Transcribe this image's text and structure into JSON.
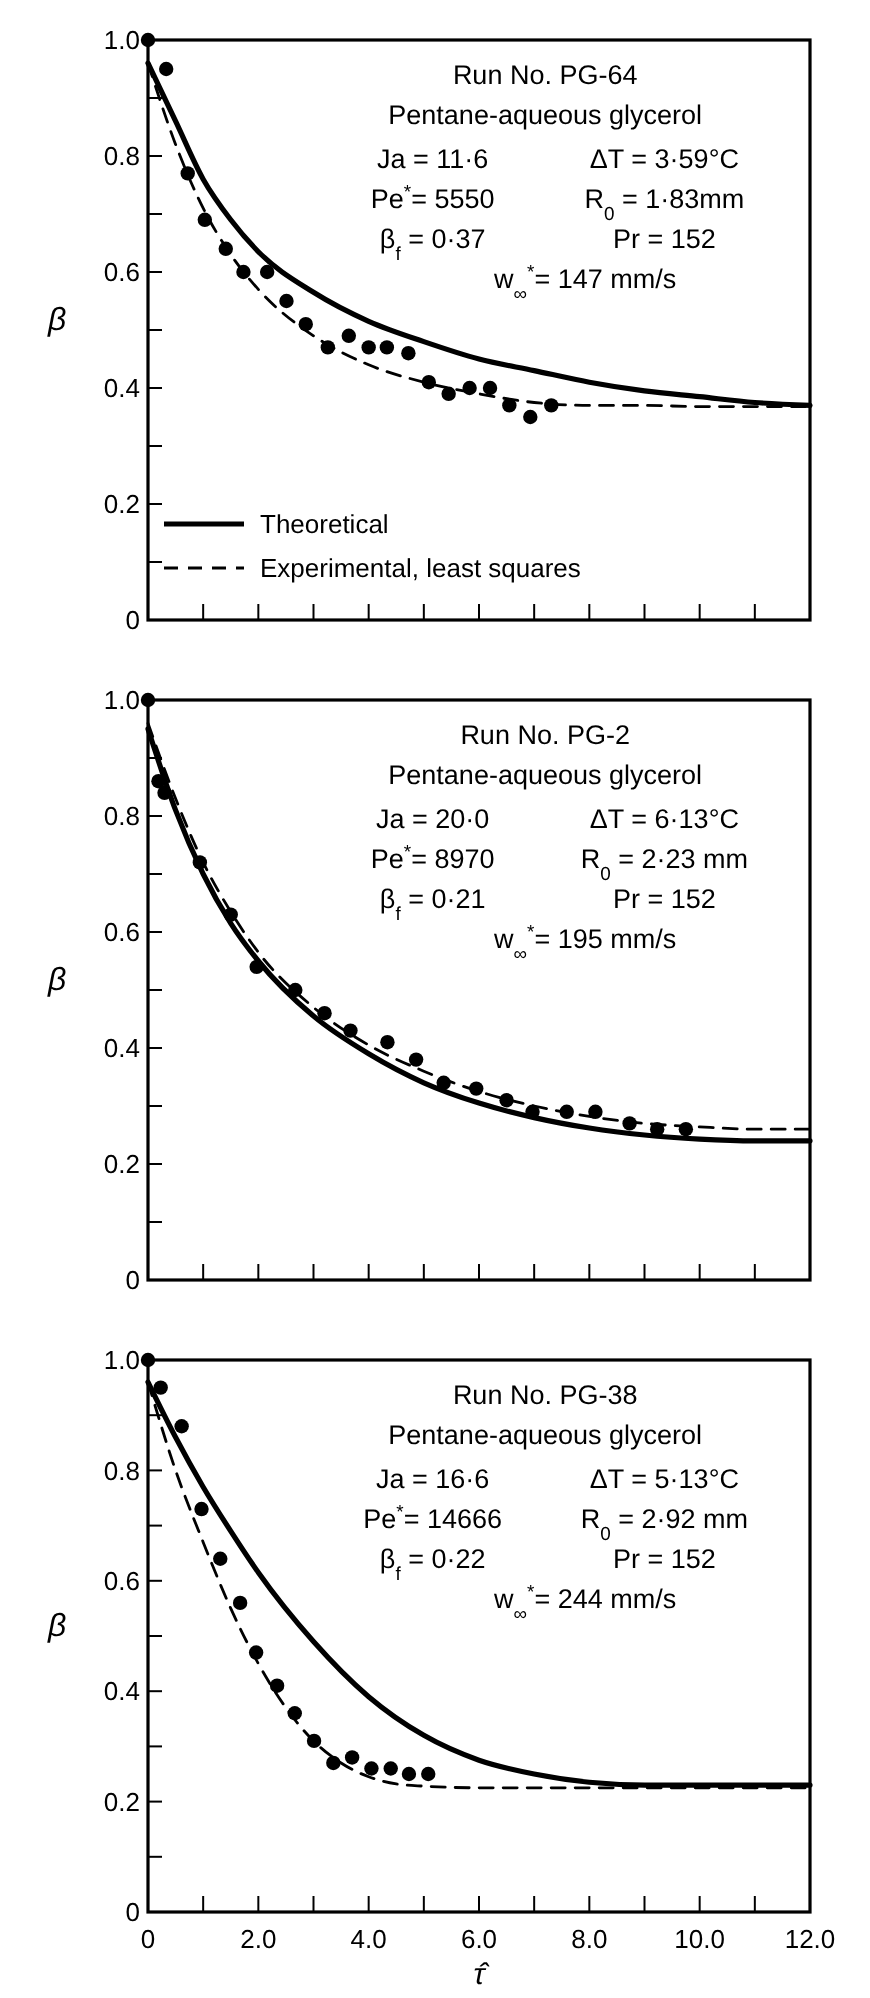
{
  "chart_data": [
    {
      "type": "line",
      "ylabel": "β",
      "xlim": [
        0,
        12
      ],
      "ylim": [
        0,
        1
      ],
      "xticks": [
        0,
        1,
        2,
        3,
        4,
        5,
        6,
        7,
        8,
        9,
        10,
        11,
        12
      ],
      "yticks": [
        0,
        {
          "value": 0.1,
          "label": null
        },
        0.2,
        {
          "value": 0.3,
          "label": null
        },
        0.4,
        {
          "value": 0.5,
          "label": null
        },
        0.6,
        {
          "value": 0.7,
          "label": null
        },
        0.8,
        {
          "value": 0.9,
          "label": null
        },
        {
          "value": 1,
          "label": "1.0"
        }
      ],
      "tick_labels": "y",
      "legend": "bottom left",
      "annotations": [
        "Run No. PG-64",
        "Pentane-aqueous glycerol",
        "Ja = 11·6",
        "ΔT = 3·59°C",
        "Pe$^{*}$= 5550",
        "R$_{0}$ = 1·83mm",
        "β$_{f}$ = 0·37",
        "Pr = 152",
        "w$_{∞}$$^{*}$= 147 mm/s"
      ],
      "series": [
        {
          "name": "Theoretical",
          "color": "#000000",
          "line_style": "solid",
          "marker": "none",
          "x": [
            0,
            0.5,
            1,
            1.5,
            2,
            3,
            4,
            5,
            6,
            7,
            8,
            9,
            10,
            11,
            12
          ],
          "values": [
            0.96,
            0.86,
            0.76,
            0.69,
            0.635,
            0.565,
            0.515,
            0.48,
            0.45,
            0.43,
            0.41,
            0.395,
            0.385,
            0.375,
            0.37
          ]
        },
        {
          "name": "Experimental, least squares",
          "color": "#000000",
          "line_style": "dashed",
          "marker": "none",
          "x": [
            0,
            0.5,
            1,
            1.5,
            2,
            3,
            4,
            5,
            6,
            7,
            8,
            9,
            10,
            12
          ],
          "values": [
            0.96,
            0.82,
            0.71,
            0.63,
            0.57,
            0.49,
            0.44,
            0.41,
            0.39,
            0.375,
            0.37,
            0.37,
            0.368,
            0.368
          ]
        },
        {
          "type": "scatter",
          "color": "#000000",
          "marker": "circle",
          "x": [
            0,
            0.33,
            0.72,
            1.03,
            1.41,
            1.73,
            2.16,
            2.51,
            2.86,
            3.26,
            3.64,
            4.0,
            4.33,
            4.72,
            5.09,
            5.45,
            5.83,
            6.2,
            6.55,
            6.93,
            7.31
          ],
          "values": [
            1.0,
            0.95,
            0.77,
            0.69,
            0.64,
            0.6,
            0.6,
            0.55,
            0.51,
            0.47,
            0.49,
            0.47,
            0.47,
            0.46,
            0.41,
            0.39,
            0.4,
            0.4,
            0.37,
            0.35,
            0.37
          ]
        }
      ]
    },
    {
      "type": "line",
      "ylabel": "β",
      "xlim": [
        0,
        12
      ],
      "ylim": [
        0,
        1
      ],
      "xticks": [
        0,
        1,
        2,
        3,
        4,
        5,
        6,
        7,
        8,
        9,
        10,
        11,
        12
      ],
      "yticks": [
        0,
        {
          "value": 0.1,
          "label": null
        },
        0.2,
        {
          "value": 0.3,
          "label": null
        },
        0.4,
        {
          "value": 0.5,
          "label": null
        },
        0.6,
        {
          "value": 0.7,
          "label": null
        },
        0.8,
        {
          "value": 0.9,
          "label": null
        },
        {
          "value": 1,
          "label": "1.0"
        }
      ],
      "tick_labels": "y",
      "annotations": [
        "Run No. PG-2",
        "Pentane-aqueous glycerol",
        "Ja = 20·0",
        "ΔT = 6·13°C",
        "Pe$^{*}$= 8970",
        "R$_{0}$ = 2·23 mm",
        "β$_{f}$ = 0·21",
        "Pr = 152",
        "w$_{∞}$$^{*}$= 195 mm/s"
      ],
      "series": [
        {
          "color": "#000000",
          "line_style": "solid",
          "marker": "none",
          "x": [
            0,
            0.5,
            1,
            1.5,
            2,
            3,
            4,
            5,
            6,
            7,
            8,
            9,
            10,
            11,
            12
          ],
          "values": [
            0.95,
            0.81,
            0.7,
            0.615,
            0.55,
            0.455,
            0.39,
            0.34,
            0.305,
            0.28,
            0.262,
            0.25,
            0.243,
            0.24,
            0.24
          ]
        },
        {
          "color": "#000000",
          "line_style": "dashed",
          "marker": "none",
          "x": [
            0,
            0.5,
            1,
            1.5,
            2,
            3,
            4,
            5,
            6,
            7,
            8,
            9,
            10,
            11,
            12
          ],
          "values": [
            0.96,
            0.83,
            0.72,
            0.635,
            0.565,
            0.47,
            0.405,
            0.36,
            0.325,
            0.3,
            0.282,
            0.27,
            0.264,
            0.26,
            0.26
          ]
        },
        {
          "type": "scatter",
          "color": "#000000",
          "marker": "circle",
          "x": [
            0,
            0.19,
            0.3,
            0.94,
            1.5,
            1.97,
            2.67,
            3.2,
            3.67,
            4.34,
            4.86,
            5.36,
            5.95,
            6.5,
            6.97,
            7.59,
            8.11,
            8.73,
            9.23,
            9.75
          ],
          "values": [
            1.0,
            0.86,
            0.84,
            0.72,
            0.63,
            0.54,
            0.5,
            0.46,
            0.43,
            0.41,
            0.38,
            0.34,
            0.33,
            0.31,
            0.29,
            0.29,
            0.29,
            0.27,
            0.26,
            0.26
          ]
        }
      ]
    },
    {
      "type": "line",
      "ylabel": "β",
      "xlabel": "τ̂",
      "xlim": [
        0,
        12
      ],
      "ylim": [
        0,
        1
      ],
      "xticks": [
        0,
        {
          "value": 1,
          "label": null
        },
        {
          "value": 2,
          "label": "2.0"
        },
        {
          "value": 3,
          "label": null
        },
        {
          "value": 4,
          "label": "4.0"
        },
        {
          "value": 5,
          "label": null
        },
        {
          "value": 6,
          "label": "6.0"
        },
        {
          "value": 7,
          "label": null
        },
        {
          "value": 8,
          "label": "8.0"
        },
        {
          "value": 9,
          "label": null
        },
        {
          "value": 10,
          "label": "10.0"
        },
        {
          "value": 11,
          "label": null
        },
        {
          "value": 12,
          "label": "12.0"
        }
      ],
      "yticks": [
        0,
        {
          "value": 0.1,
          "label": null
        },
        0.2,
        {
          "value": 0.3,
          "label": null
        },
        0.4,
        {
          "value": 0.5,
          "label": null
        },
        0.6,
        {
          "value": 0.7,
          "label": null
        },
        0.8,
        {
          "value": 0.9,
          "label": null
        },
        {
          "value": 1,
          "label": "1.0"
        }
      ],
      "annotations": [
        "Run No. PG-38",
        "Pentane-aqueous glycerol",
        "Ja = 16·6",
        "ΔT = 5·13°C",
        "Pe$^{*}$= 14666",
        "R$_{0}$ = 2·92 mm",
        "β$_{f}$ = 0·22",
        "Pr = 152",
        "w$_{∞}$$^{*}$= 244 mm/s"
      ],
      "series": [
        {
          "color": "#000000",
          "line_style": "solid",
          "marker": "none",
          "x": [
            0,
            0.5,
            1,
            1.5,
            2,
            3,
            4,
            5,
            6,
            7,
            8,
            9,
            12
          ],
          "values": [
            0.96,
            0.86,
            0.77,
            0.69,
            0.615,
            0.49,
            0.39,
            0.32,
            0.275,
            0.25,
            0.235,
            0.23,
            0.23
          ]
        },
        {
          "color": "#000000",
          "line_style": "dashed",
          "marker": "none",
          "x": [
            0,
            0.5,
            1,
            1.5,
            2,
            2.5,
            3,
            3.5,
            4,
            4.5,
            5,
            6,
            8,
            12
          ],
          "values": [
            0.96,
            0.8,
            0.67,
            0.55,
            0.45,
            0.37,
            0.31,
            0.27,
            0.245,
            0.232,
            0.228,
            0.225,
            0.225,
            0.225
          ]
        },
        {
          "type": "scatter",
          "color": "#000000",
          "marker": "circle",
          "x": [
            0,
            0.23,
            0.61,
            0.97,
            1.31,
            1.67,
            1.96,
            2.34,
            2.66,
            3.01,
            3.36,
            3.7,
            4.05,
            4.4,
            4.73,
            5.08
          ],
          "values": [
            1.0,
            0.95,
            0.88,
            0.73,
            0.64,
            0.56,
            0.47,
            0.41,
            0.36,
            0.31,
            0.27,
            0.28,
            0.26,
            0.26,
            0.25,
            0.25
          ]
        }
      ]
    }
  ]
}
